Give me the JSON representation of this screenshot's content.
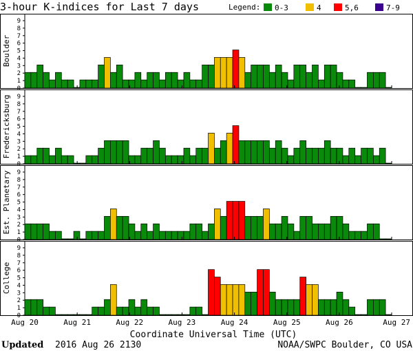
{
  "header": {
    "title": "3-hour K-indices for Last 7 days",
    "legend_label": "Legend:",
    "legend": [
      {
        "label": "0-3",
        "color": "#0a8a0a"
      },
      {
        "label": "4",
        "color": "#f0c000"
      },
      {
        "label": "5,6",
        "color": "#ff0000"
      },
      {
        "label": "7-9",
        "color": "#3a0090"
      }
    ]
  },
  "footer": {
    "updated_label": "Updated",
    "updated_value": "2016 Aug 26 2130",
    "credit": "NOAA/SWPC Boulder, CO USA"
  },
  "chart_data": {
    "type": "bar",
    "xlabel": "Coordinate Universal Time (UTC)",
    "x_ticks": [
      "Aug 20",
      "Aug 21",
      "Aug 22",
      "Aug 23",
      "Aug 24",
      "Aug 25",
      "Aug 26",
      "Aug 27"
    ],
    "ylim": [
      0,
      9
    ],
    "y_ticks": [
      "0",
      "1",
      "2",
      "3",
      "4",
      "5",
      "6",
      "7",
      "8",
      "9"
    ],
    "color_scale": [
      {
        "range": "0-3",
        "color": "#0a8a0a"
      },
      {
        "range": "4",
        "color": "#f0c000"
      },
      {
        "range": "5,6",
        "color": "#ff0000"
      },
      {
        "range": "7-9",
        "color": "#3a0090"
      }
    ],
    "panels": [
      {
        "station": "Boulder",
        "values": [
          2,
          2,
          3,
          2,
          1,
          2,
          1,
          1,
          0,
          1,
          1,
          1,
          3,
          4,
          2,
          3,
          1,
          1,
          2,
          1,
          2,
          2,
          1,
          2,
          2,
          1,
          2,
          1,
          1,
          3,
          3,
          4,
          4,
          4,
          5,
          4,
          2,
          3,
          3,
          3,
          2,
          3,
          2,
          1,
          3,
          3,
          2,
          3,
          1,
          3,
          3,
          2,
          1,
          1,
          0,
          0,
          2,
          2,
          2,
          0
        ]
      },
      {
        "station": "Fredericksburg",
        "values": [
          1,
          1,
          2,
          2,
          1,
          2,
          1,
          1,
          0,
          0,
          1,
          1,
          2,
          3,
          3,
          3,
          3,
          1,
          1,
          2,
          2,
          3,
          2,
          1,
          1,
          1,
          2,
          1,
          2,
          2,
          4,
          2,
          3,
          4,
          5,
          3,
          3,
          3,
          3,
          3,
          2,
          3,
          2,
          1,
          2,
          3,
          2,
          2,
          2,
          3,
          2,
          2,
          1,
          2,
          1,
          2,
          2,
          1,
          2,
          0
        ]
      },
      {
        "station": "Est. Planetary",
        "values": [
          2,
          2,
          2,
          2,
          1,
          1,
          0,
          0,
          1,
          0,
          1,
          1,
          1,
          3,
          4,
          3,
          3,
          2,
          1,
          2,
          1,
          2,
          1,
          1,
          1,
          1,
          1,
          2,
          2,
          1,
          2,
          4,
          3,
          5,
          5,
          5,
          3,
          3,
          3,
          4,
          2,
          2,
          3,
          2,
          1,
          3,
          3,
          2,
          2,
          2,
          3,
          3,
          2,
          1,
          1,
          1,
          2,
          2,
          0,
          0
        ]
      },
      {
        "station": "College",
        "values": [
          2,
          2,
          2,
          1,
          1,
          0,
          0,
          0,
          0,
          0,
          0,
          1,
          1,
          2,
          4,
          1,
          1,
          2,
          1,
          2,
          1,
          1,
          0,
          0,
          0,
          0,
          0,
          1,
          1,
          0,
          6,
          5,
          4,
          4,
          4,
          4,
          3,
          3,
          6,
          6,
          3,
          2,
          2,
          2,
          2,
          5,
          4,
          4,
          2,
          2,
          2,
          3,
          2,
          1,
          0,
          0,
          2,
          2,
          2,
          0
        ]
      }
    ]
  }
}
